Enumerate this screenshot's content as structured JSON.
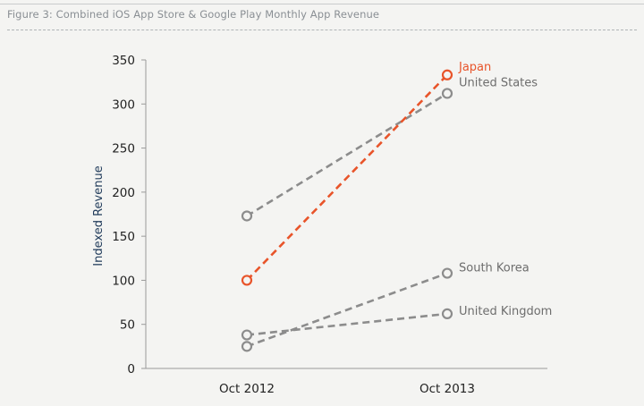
{
  "figure": {
    "caption": "Figure 3: Combined iOS App Store & Google Play Monthly App Revenue"
  },
  "chart_data": {
    "type": "line",
    "title": "Figure 3: Combined iOS App Store & Google Play Monthly App Revenue",
    "xlabel": "",
    "ylabel": "Indexed Revenue",
    "categories": [
      "Oct 2012",
      "Oct 2013"
    ],
    "ylim": [
      0,
      350
    ],
    "yticks": [
      0,
      50,
      100,
      150,
      200,
      250,
      300,
      350
    ],
    "grid": false,
    "series": [
      {
        "name": "Japan",
        "values": [
          100,
          333
        ],
        "color": "#e8542a"
      },
      {
        "name": "United States",
        "values": [
          173,
          312
        ],
        "color": "#8c8c8c"
      },
      {
        "name": "South Korea",
        "values": [
          25,
          108
        ],
        "color": "#8c8c8c"
      },
      {
        "name": "United Kingdom",
        "values": [
          38,
          62
        ],
        "color": "#8c8c8c"
      }
    ],
    "colors": {
      "axis": "#9a9a9a",
      "label_gray": "#6d6d6d",
      "ylabel": "#1f3a5a"
    }
  }
}
